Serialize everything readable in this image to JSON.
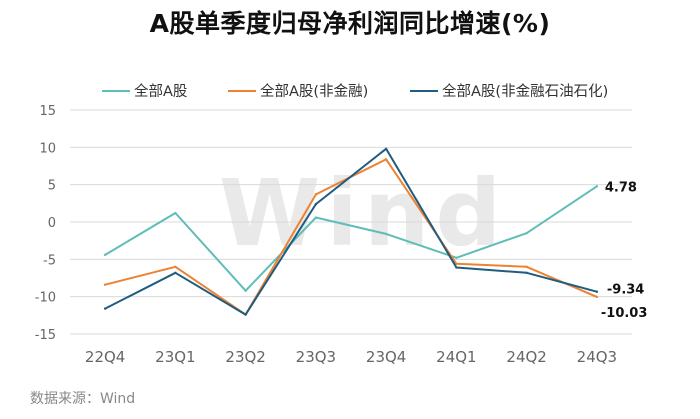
{
  "title": "A股单季度归母净利润同比增速(%)",
  "source": "数据来源：Wind",
  "watermark": "Wind",
  "colors": {
    "teal": "#5fbdb7",
    "orange": "#ec8232",
    "navy": "#1f5c80",
    "grid": "#d9d9d9",
    "tick": "#666666",
    "watermark": "#e9e9e9"
  },
  "chart_data": {
    "type": "line",
    "title": "A股单季度归母净利润同比增速(%)",
    "categories": [
      "22Q4",
      "23Q1",
      "23Q2",
      "23Q3",
      "23Q4",
      "24Q1",
      "24Q2",
      "24Q3"
    ],
    "ylim": [
      -15,
      15
    ],
    "yticks": [
      -15,
      -10,
      -5,
      0,
      5,
      10,
      15
    ],
    "grid": "horizontal",
    "legend_position": "top",
    "series": [
      {
        "name": "全部A股",
        "color": "#5fbdb7",
        "values": [
          -4.4,
          1.2,
          -9.2,
          0.6,
          -1.6,
          -4.8,
          -1.5,
          4.78
        ]
      },
      {
        "name": "全部A股(非金融)",
        "color": "#ec8232",
        "values": [
          -8.4,
          -6.0,
          -12.4,
          3.7,
          8.4,
          -5.6,
          -6.0,
          -10.03
        ]
      },
      {
        "name": "全部A股(非金融石油石化)",
        "color": "#1f5c80",
        "values": [
          -11.6,
          -6.8,
          -12.4,
          2.4,
          9.8,
          -6.1,
          -6.8,
          -9.34
        ]
      }
    ],
    "data_labels": [
      {
        "series": "全部A股",
        "category": "24Q3",
        "text": "4.78"
      },
      {
        "series": "全部A股(非金融石油石化)",
        "category": "24Q3",
        "text": "-9.34"
      },
      {
        "series": "全部A股(非金融)",
        "category": "24Q3",
        "text": "-10.03"
      }
    ]
  }
}
